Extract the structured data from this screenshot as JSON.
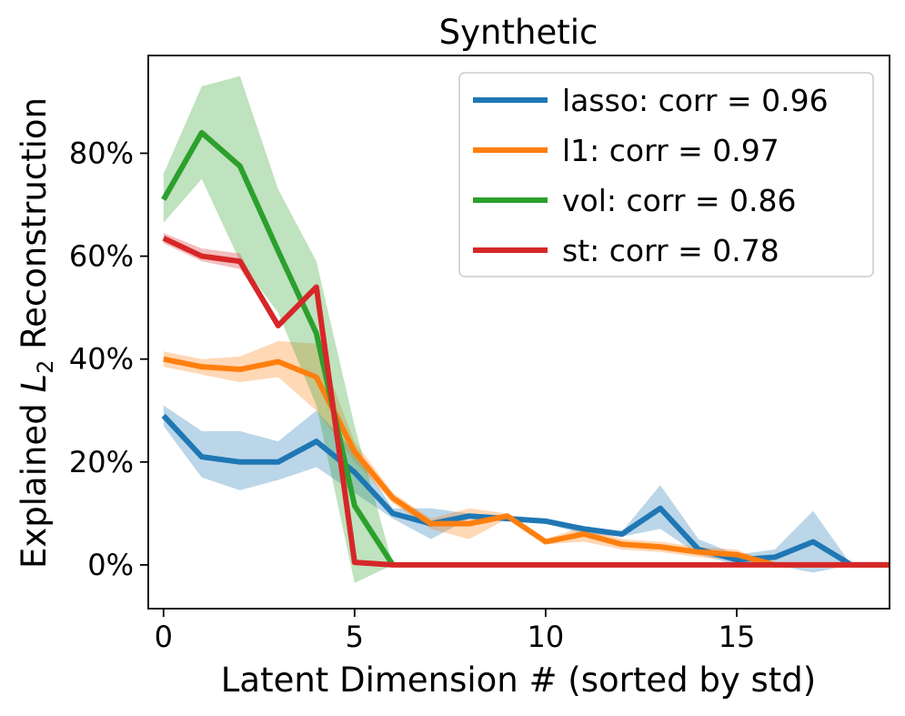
{
  "chart_data": {
    "type": "line",
    "title": "Synthetic",
    "xlabel": "Latent Dimension # (sorted by std)",
    "ylabel": {
      "prefix": "Explained ",
      "var": "L",
      "sub": "2",
      "suffix": " Reconstruction"
    },
    "xlim": [
      -0.4,
      19
    ],
    "ylim": [
      -0.085,
      0.99
    ],
    "x_ticks": [
      0,
      5,
      10,
      15
    ],
    "x_tick_labels": [
      "0",
      "5",
      "10",
      "15"
    ],
    "y_ticks": [
      0,
      0.2,
      0.4,
      0.6,
      0.8
    ],
    "y_tick_labels": [
      "0%",
      "20%",
      "40%",
      "60%",
      "80%"
    ],
    "legend_position": "upper-right",
    "series": [
      {
        "name": "lasso",
        "legend_label": "lasso: corr = 0.96",
        "color": "#1f77b4",
        "x": [
          0,
          1,
          2,
          3,
          4,
          5,
          6,
          7,
          8,
          9,
          10,
          11,
          12,
          13,
          14,
          15,
          16,
          17,
          18,
          19
        ],
        "values": [
          0.29,
          0.21,
          0.2,
          0.2,
          0.24,
          0.18,
          0.1,
          0.08,
          0.095,
          0.09,
          0.085,
          0.07,
          0.06,
          0.11,
          0.03,
          0.01,
          0.015,
          0.045,
          0,
          0
        ],
        "lower": [
          0.27,
          0.17,
          0.145,
          0.165,
          0.19,
          0.14,
          0.09,
          0.05,
          0.09,
          0.085,
          0.08,
          0.06,
          0.055,
          0.07,
          0.02,
          0,
          0,
          -0.015,
          0,
          0
        ],
        "upper": [
          0.31,
          0.26,
          0.26,
          0.24,
          0.3,
          0.22,
          0.11,
          0.11,
          0.1,
          0.095,
          0.09,
          0.075,
          0.065,
          0.155,
          0.05,
          0.02,
          0.03,
          0.105,
          0,
          0
        ]
      },
      {
        "name": "l1",
        "legend_label": "l1: corr = 0.97",
        "color": "#ff7f0e",
        "x": [
          0,
          1,
          2,
          3,
          4,
          5,
          6,
          7,
          8,
          9,
          10,
          11,
          12,
          13,
          14,
          15,
          16,
          17,
          18,
          19
        ],
        "values": [
          0.4,
          0.385,
          0.38,
          0.395,
          0.365,
          0.22,
          0.13,
          0.08,
          0.08,
          0.095,
          0.045,
          0.06,
          0.04,
          0.035,
          0.025,
          0.02,
          0,
          0,
          0,
          0
        ],
        "lower": [
          0.385,
          0.37,
          0.355,
          0.365,
          0.3,
          0.2,
          0.12,
          0.07,
          0.05,
          0.09,
          0.04,
          0.045,
          0.03,
          0.025,
          0.015,
          0.01,
          0,
          0,
          0,
          0
        ],
        "upper": [
          0.415,
          0.4,
          0.405,
          0.435,
          0.43,
          0.24,
          0.14,
          0.09,
          0.11,
          0.1,
          0.05,
          0.075,
          0.05,
          0.045,
          0.035,
          0.03,
          0,
          0,
          0,
          0
        ]
      },
      {
        "name": "vol",
        "legend_label": "vol: corr = 0.86",
        "color": "#2ca02c",
        "x": [
          0,
          1,
          2,
          3,
          4,
          5,
          6
        ],
        "values": [
          0.71,
          0.84,
          0.775,
          0.61,
          0.45,
          0.115,
          0
        ],
        "lower": [
          0.665,
          0.75,
          0.59,
          0.49,
          0.31,
          -0.035,
          0
        ],
        "upper": [
          0.76,
          0.93,
          0.95,
          0.73,
          0.59,
          0.27,
          0
        ]
      },
      {
        "name": "st",
        "legend_label": "st: corr = 0.78",
        "color": "#d62728",
        "x": [
          0,
          1,
          2,
          3,
          4,
          5,
          6,
          7,
          8,
          9,
          10,
          11,
          12,
          13,
          14,
          15,
          16,
          17,
          18,
          19
        ],
        "values": [
          0.635,
          0.6,
          0.59,
          0.465,
          0.54,
          0.005,
          0,
          0,
          0,
          0,
          0,
          0,
          0,
          0,
          0,
          0,
          0,
          0,
          0,
          0
        ],
        "lower": [
          0.625,
          0.59,
          0.575,
          0.465,
          0.54,
          0.005,
          0,
          0,
          0,
          0,
          0,
          0,
          0,
          0,
          0,
          0,
          0,
          0,
          0,
          0
        ],
        "upper": [
          0.645,
          0.615,
          0.605,
          0.465,
          0.54,
          0.005,
          0,
          0,
          0,
          0,
          0,
          0,
          0,
          0,
          0,
          0,
          0,
          0,
          0,
          0
        ]
      }
    ]
  }
}
